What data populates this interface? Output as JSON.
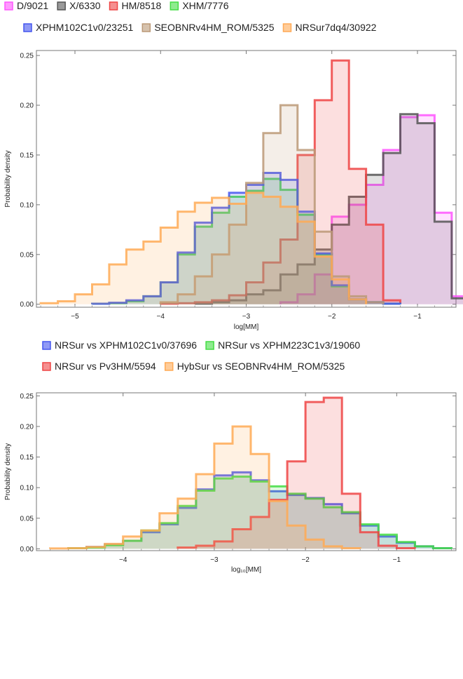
{
  "chart_data": [
    {
      "type": "area",
      "style": "step-histogram",
      "xlabel": "log[MM]",
      "ylabel": "Probability density",
      "xlim": [
        -5.45,
        -0.55
      ],
      "ylim": [
        -0.003,
        0.255
      ],
      "xticks": [
        -5,
        -4,
        -3,
        -2,
        -1
      ],
      "xtick_labels": [
        "−5",
        "−4",
        "−3",
        "−2",
        "−1"
      ],
      "yticks": [
        0,
        0.05,
        0.1,
        0.15,
        0.2,
        0.25
      ],
      "ytick_labels": [
        "0.00",
        "0.05",
        "0.10",
        "0.15",
        "0.20",
        "0.25"
      ],
      "legend_position": "top",
      "series": [
        {
          "name": "D/9021",
          "color": "#ff55ff",
          "x": [
            -2.6,
            -2.4,
            -2.2,
            -2.0,
            -1.8,
            -1.6,
            -1.4,
            -1.2,
            -1.0,
            -0.8,
            -0.6
          ],
          "values": [
            0.002,
            0.01,
            0.03,
            0.088,
            0.1,
            0.12,
            0.155,
            0.188,
            0.19,
            0.092,
            0.008
          ]
        },
        {
          "name": "X/6330",
          "color": "#555555",
          "x": [
            -3.6,
            -3.4,
            -3.2,
            -3.0,
            -2.8,
            -2.6,
            -2.4,
            -2.2,
            -2.0,
            -1.8,
            -1.6,
            -1.4,
            -1.2,
            -1.0,
            -0.8,
            -0.6
          ],
          "values": [
            0.0005,
            0.002,
            0.004,
            0.01,
            0.014,
            0.03,
            0.04,
            0.055,
            0.08,
            0.108,
            0.13,
            0.152,
            0.191,
            0.182,
            0.083,
            0.006
          ]
        },
        {
          "name": "HM/8518",
          "color": "#ee4444",
          "x": [
            -4.0,
            -3.8,
            -3.6,
            -3.4,
            -3.2,
            -3.0,
            -2.8,
            -2.6,
            -2.4,
            -2.2,
            -2.0,
            -1.8,
            -1.6,
            -1.4
          ],
          "values": [
            0.0005,
            0.001,
            0.002,
            0.004,
            0.009,
            0.022,
            0.042,
            0.065,
            0.15,
            0.205,
            0.245,
            0.136,
            0.08,
            0.004
          ]
        },
        {
          "name": "XHM/7776",
          "color": "#44dd44",
          "x": [
            -4.8,
            -4.6,
            -4.4,
            -4.2,
            -4.0,
            -3.8,
            -3.6,
            -3.4,
            -3.2,
            -3.0,
            -2.8,
            -2.6,
            -2.4,
            -2.2,
            -2.0,
            -1.8,
            -1.6,
            -1.4
          ],
          "values": [
            0.0005,
            0.001,
            0.003,
            0.008,
            0.022,
            0.05,
            0.078,
            0.092,
            0.108,
            0.114,
            0.126,
            0.115,
            0.09,
            0.05,
            0.018,
            0.005,
            0.002,
            0.0005
          ]
        },
        {
          "name": "XPHM102C1v0/23251",
          "color": "#4455ee",
          "x": [
            -4.8,
            -4.6,
            -4.4,
            -4.2,
            -4.0,
            -3.8,
            -3.6,
            -3.4,
            -3.2,
            -3.0,
            -2.8,
            -2.6,
            -2.4,
            -2.2,
            -2.0,
            -1.8,
            -1.6,
            -1.4
          ],
          "values": [
            0.0005,
            0.0015,
            0.004,
            0.008,
            0.022,
            0.052,
            0.082,
            0.097,
            0.112,
            0.12,
            0.132,
            0.125,
            0.093,
            0.051,
            0.019,
            0.005,
            0.002,
            0.0005
          ]
        },
        {
          "name": "SEOBNRv4HM_ROM/5325",
          "color": "#bb9977",
          "x": [
            -4.0,
            -3.8,
            -3.6,
            -3.4,
            -3.2,
            -3.0,
            -2.8,
            -2.6,
            -2.4,
            -2.2,
            -2.0,
            -1.8,
            -1.6
          ],
          "values": [
            0.002,
            0.01,
            0.028,
            0.05,
            0.08,
            0.122,
            0.172,
            0.2,
            0.155,
            0.073,
            0.028,
            0.008,
            0.002
          ]
        },
        {
          "name": "NRSur7dq4/30922",
          "color": "#ffaa55",
          "x": [
            -5.4,
            -5.2,
            -5.0,
            -4.8,
            -4.6,
            -4.4,
            -4.2,
            -4.0,
            -3.8,
            -3.6,
            -3.4,
            -3.2,
            -3.0,
            -2.8,
            -2.6,
            -2.4,
            -2.2,
            -2.0,
            -1.8
          ],
          "values": [
            0.001,
            0.003,
            0.01,
            0.02,
            0.04,
            0.055,
            0.063,
            0.077,
            0.093,
            0.102,
            0.107,
            0.101,
            0.112,
            0.108,
            0.098,
            0.083,
            0.048,
            0.025,
            0.005
          ]
        }
      ]
    },
    {
      "type": "area",
      "style": "step-histogram",
      "xlabel": "log₁₀[MM]",
      "ylabel": "Probability density",
      "xlim": [
        -4.95,
        -0.35
      ],
      "ylim": [
        -0.003,
        0.255
      ],
      "xticks": [
        -4,
        -3,
        -2,
        -1
      ],
      "xtick_labels": [
        "−4",
        "−3",
        "−2",
        "−1"
      ],
      "yticks": [
        0,
        0.05,
        0.1,
        0.15,
        0.2,
        0.25
      ],
      "ytick_labels": [
        "0.00",
        "0.05",
        "0.10",
        "0.15",
        "0.20",
        "0.25"
      ],
      "legend_position": "top",
      "series": [
        {
          "name": "NRSur vs XPHM102C1v0/37696",
          "color": "#4455ee",
          "x": [
            -4.6,
            -4.4,
            -4.2,
            -4.0,
            -3.8,
            -3.6,
            -3.4,
            -3.2,
            -3.0,
            -2.8,
            -2.6,
            -2.4,
            -2.2,
            -2.0,
            -1.8,
            -1.6,
            -1.4,
            -1.2,
            -1.0,
            -0.8,
            -0.6
          ],
          "values": [
            0.001,
            0.003,
            0.007,
            0.013,
            0.027,
            0.04,
            0.067,
            0.097,
            0.12,
            0.125,
            0.112,
            0.094,
            0.088,
            0.083,
            0.073,
            0.058,
            0.038,
            0.02,
            0.01,
            0.004,
            0.001
          ]
        },
        {
          "name": "NRSur vs XPHM223C1v3/19060",
          "color": "#44dd44",
          "x": [
            -4.6,
            -4.4,
            -4.2,
            -4.0,
            -3.8,
            -3.6,
            -3.4,
            -3.2,
            -3.0,
            -2.8,
            -2.6,
            -2.4,
            -2.2,
            -2.0,
            -1.8,
            -1.6,
            -1.4,
            -1.2,
            -1.0,
            -0.8,
            -0.6
          ],
          "values": [
            0.001,
            0.002,
            0.006,
            0.013,
            0.03,
            0.042,
            0.07,
            0.095,
            0.115,
            0.118,
            0.11,
            0.102,
            0.09,
            0.082,
            0.068,
            0.06,
            0.04,
            0.023,
            0.011,
            0.004,
            0.001
          ]
        },
        {
          "name": "NRSur vs Pv3HM/5594",
          "color": "#ee4444",
          "x": [
            -3.4,
            -3.2,
            -3.0,
            -2.8,
            -2.6,
            -2.4,
            -2.2,
            -2.0,
            -1.8,
            -1.6,
            -1.4,
            -1.2,
            -1.0
          ],
          "values": [
            0.002,
            0.005,
            0.012,
            0.032,
            0.052,
            0.08,
            0.143,
            0.24,
            0.247,
            0.09,
            0.027,
            0.005,
            0.001
          ]
        },
        {
          "name": "HybSur vs SEOBNRv4HM_ROM/5325",
          "color": "#ffaa55",
          "x": [
            -4.8,
            -4.6,
            -4.4,
            -4.2,
            -4.0,
            -3.8,
            -3.6,
            -3.4,
            -3.2,
            -3.0,
            -2.8,
            -2.6,
            -2.4,
            -2.2,
            -2.0,
            -1.8,
            -1.6
          ],
          "values": [
            0.0005,
            0.001,
            0.003,
            0.008,
            0.02,
            0.03,
            0.058,
            0.082,
            0.122,
            0.172,
            0.2,
            0.155,
            0.078,
            0.038,
            0.015,
            0.004,
            0.001
          ]
        }
      ]
    }
  ]
}
